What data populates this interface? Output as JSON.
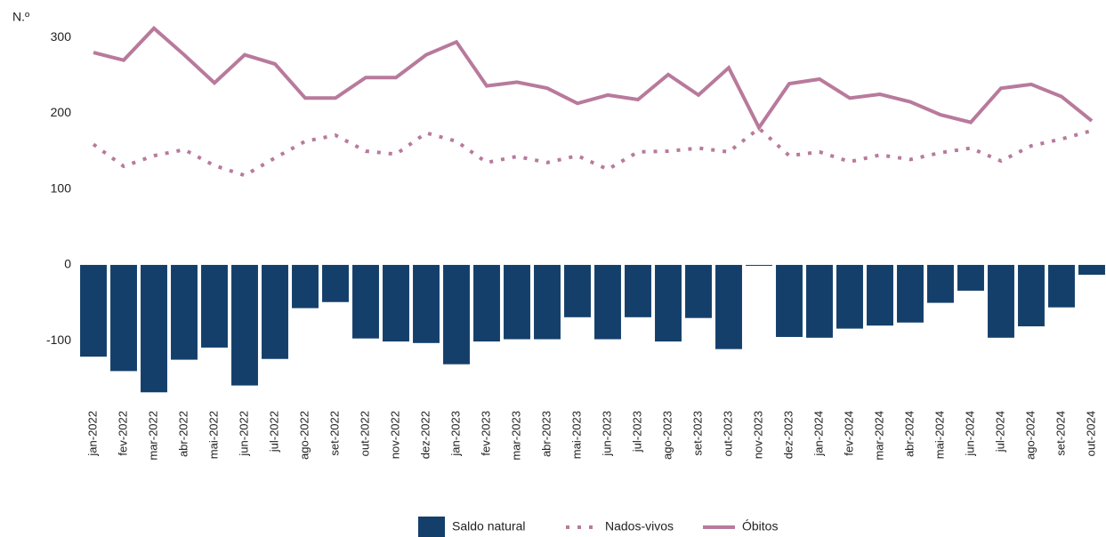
{
  "chart_data": {
    "type": "bar-line",
    "y_label": "N.º",
    "categories": [
      "jan-2022",
      "fev-2022",
      "mar-2022",
      "abr-2022",
      "mai-2022",
      "jun-2022",
      "jul-2022",
      "ago-2022",
      "set-2022",
      "out-2022",
      "nov-2022",
      "dez-2022",
      "jan-2023",
      "fev-2023",
      "mar-2023",
      "abr-2023",
      "mai-2023",
      "jun-2023",
      "jul-2023",
      "ago-2023",
      "set-2023",
      "out-2023",
      "nov-2023",
      "dez-2023",
      "jan-2024",
      "fev-2024",
      "mar-2024",
      "abr-2024",
      "mai-2024",
      "jun-2024",
      "jul-2024",
      "ago-2024",
      "set-2024",
      "out-2024"
    ],
    "series": [
      {
        "name": "Saldo natural",
        "type": "bar",
        "color": "#143f6b",
        "values": [
          -121,
          -140,
          -168,
          -125,
          -109,
          -159,
          -124,
          -57,
          -49,
          -97,
          -101,
          -103,
          -131,
          -101,
          -98,
          -98,
          -69,
          -98,
          -69,
          -101,
          -70,
          -111,
          -1,
          -95,
          -96,
          -84,
          -80,
          -76,
          -50,
          -34,
          -96,
          -81,
          -56,
          -13
        ]
      },
      {
        "name": "Nados-vivos",
        "type": "line",
        "dash": "dotted",
        "color": "#b87a9c",
        "values": [
          159,
          130,
          144,
          152,
          131,
          118,
          141,
          163,
          171,
          150,
          146,
          174,
          163,
          135,
          143,
          135,
          144,
          126,
          149,
          150,
          154,
          149,
          180,
          144,
          149,
          136,
          145,
          139,
          148,
          154,
          137,
          157,
          166,
          177
        ]
      },
      {
        "name": "Óbitos",
        "type": "line",
        "dash": "solid",
        "color": "#b87a9c",
        "values": [
          280,
          270,
          312,
          277,
          240,
          277,
          265,
          220,
          220,
          247,
          247,
          277,
          294,
          236,
          241,
          233,
          213,
          224,
          218,
          251,
          224,
          260,
          181,
          239,
          245,
          220,
          225,
          215,
          198,
          188,
          233,
          238,
          222,
          190
        ]
      }
    ],
    "ylim": [
      -180,
      320
    ],
    "yticks": [
      -100,
      0,
      100,
      200,
      300
    ],
    "grid": false
  }
}
